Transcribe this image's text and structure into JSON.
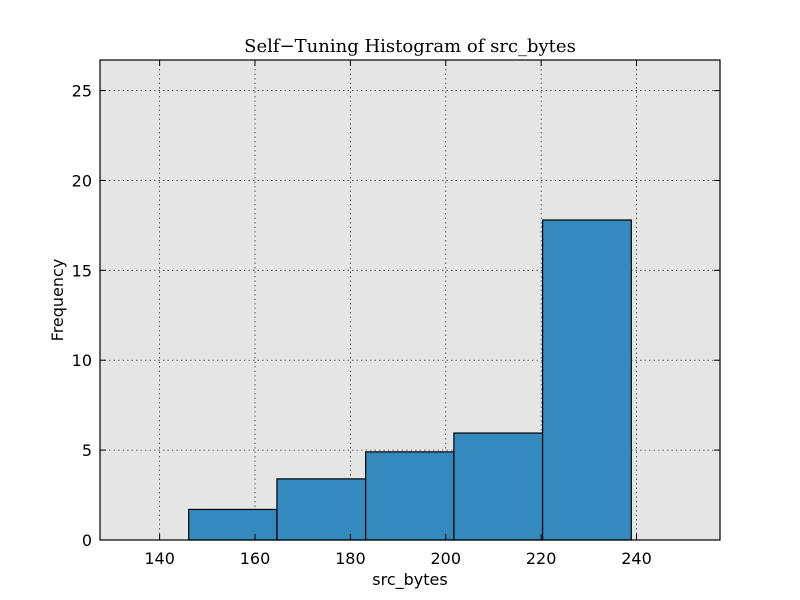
{
  "chart_data": {
    "type": "bar",
    "title": "Self−Tuning Histogram of src_bytes",
    "xlabel": "src_bytes",
    "ylabel": "Frequency",
    "xlim": [
      127.5,
      257.5
    ],
    "ylim": [
      0,
      26.7
    ],
    "xticks": [
      140,
      160,
      180,
      200,
      220,
      240
    ],
    "yticks": [
      0,
      5,
      10,
      15,
      20,
      25
    ],
    "grid": true,
    "bins": [
      {
        "x0": 146.1,
        "x1": 164.6,
        "value": 1.7
      },
      {
        "x0": 164.6,
        "x1": 183.2,
        "value": 3.4
      },
      {
        "x0": 183.2,
        "x1": 201.7,
        "value": 4.9
      },
      {
        "x0": 201.7,
        "x1": 220.3,
        "value": 5.95
      },
      {
        "x0": 220.3,
        "x1": 238.9,
        "value": 17.8
      }
    ]
  },
  "colors": {
    "bar_fill": "#348abd",
    "plot_background": "#e5e5e5",
    "figure_background": "#ffffff"
  }
}
